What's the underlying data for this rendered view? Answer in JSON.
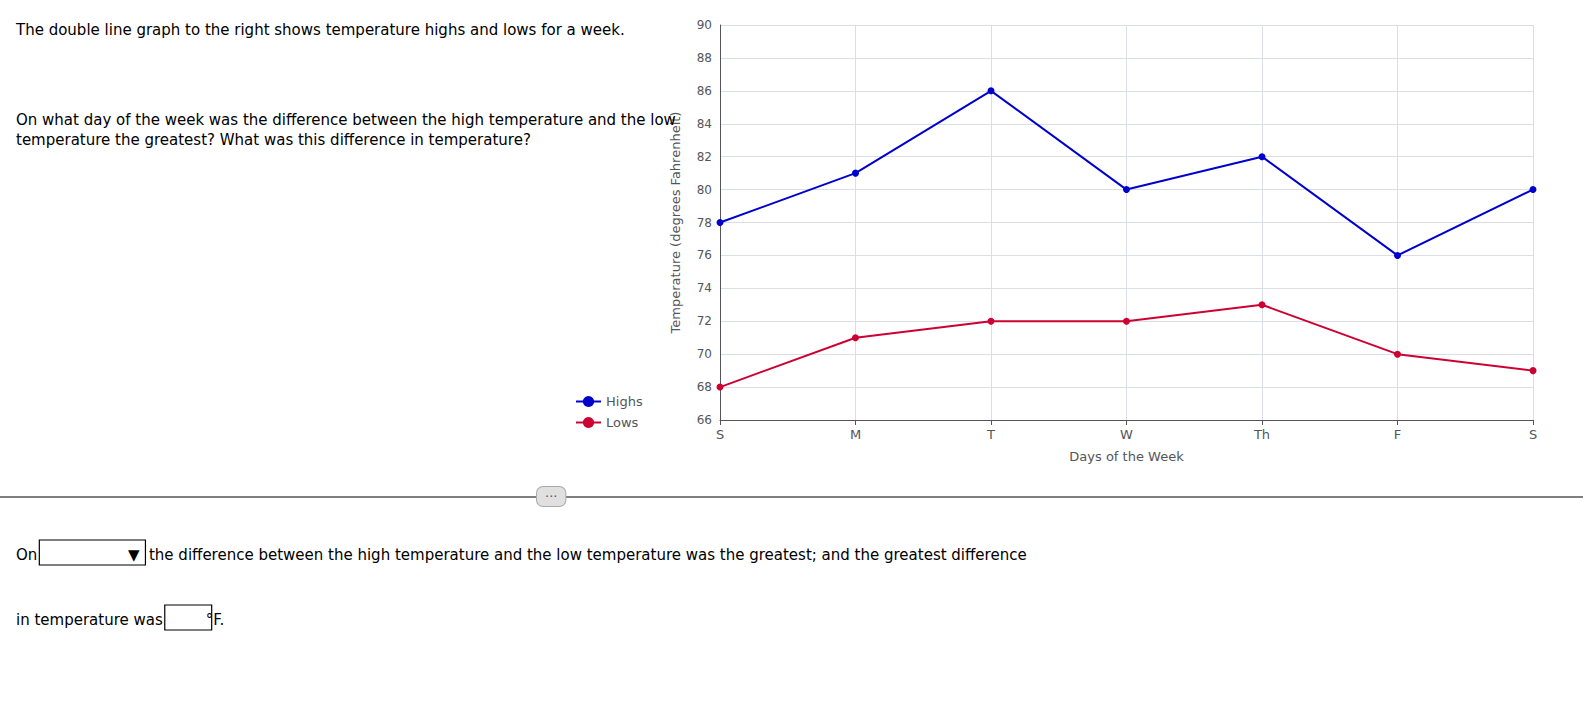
{
  "chart_data": {
    "type": "line",
    "categories": [
      "S",
      "M",
      "T",
      "W",
      "Th",
      "F",
      "S"
    ],
    "series": [
      {
        "name": "Highs",
        "color": "#0000cc",
        "marker": "circle",
        "values": [
          78,
          81,
          86,
          80,
          82,
          76,
          80
        ]
      },
      {
        "name": "Lows",
        "color": "#cc0033",
        "marker": "circle",
        "values": [
          68,
          71,
          72,
          72,
          73,
          70,
          69
        ]
      }
    ],
    "xlabel": "Days of the Week",
    "ylabel": "Temperature (degrees Fahrenheit)",
    "ylim": [
      66,
      90
    ],
    "yticks": [
      66,
      68,
      70,
      72,
      74,
      76,
      78,
      80,
      82,
      84,
      86,
      88,
      90
    ],
    "grid": true,
    "legend": "lower left",
    "annotations": [
      "The double line graph to the right shows temperature highs and lows for a week.",
      "On what day of the week was the difference between the high temperature and the low\ntemperature the greatest? What was this difference in temperature?",
      "···",
      "On                   ▼  the difference between the high temperature and the low temperature was the greatest; and the greatest difference",
      "in temperature was         °F."
    ]
  }
}
